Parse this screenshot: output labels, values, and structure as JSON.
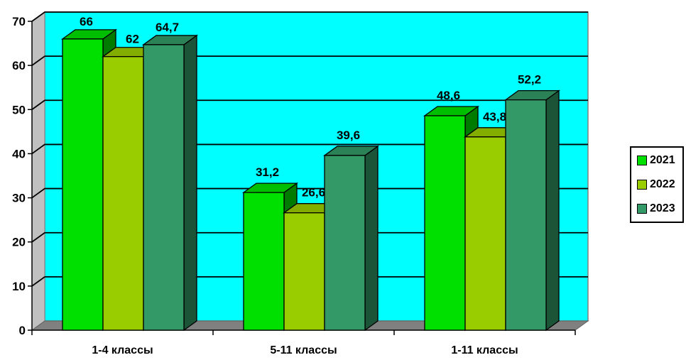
{
  "chart_data": {
    "type": "bar",
    "categories": [
      "1-4 классы",
      "5-11 классы",
      "1-11 классы"
    ],
    "series": [
      {
        "name": "2021",
        "values": [
          66,
          31.2,
          48.6
        ],
        "labels": [
          "66",
          "31,2",
          "48,6"
        ],
        "color": "#00e000"
      },
      {
        "name": "2022",
        "values": [
          62,
          26.6,
          43.8
        ],
        "labels": [
          "62",
          "26,6",
          "43,8"
        ],
        "color": "#9acd00"
      },
      {
        "name": "2023",
        "values": [
          64.7,
          39.6,
          52.2
        ],
        "labels": [
          "64,7",
          "39,6",
          "52,2"
        ],
        "color": "#339966"
      }
    ],
    "yticks": [
      "0",
      "10",
      "20",
      "30",
      "40",
      "50",
      "60",
      "70"
    ],
    "ylim": [
      0,
      70
    ],
    "grid": true,
    "legend_position": "right",
    "plot_background": "#00ffff",
    "floor_color": "#808080"
  }
}
